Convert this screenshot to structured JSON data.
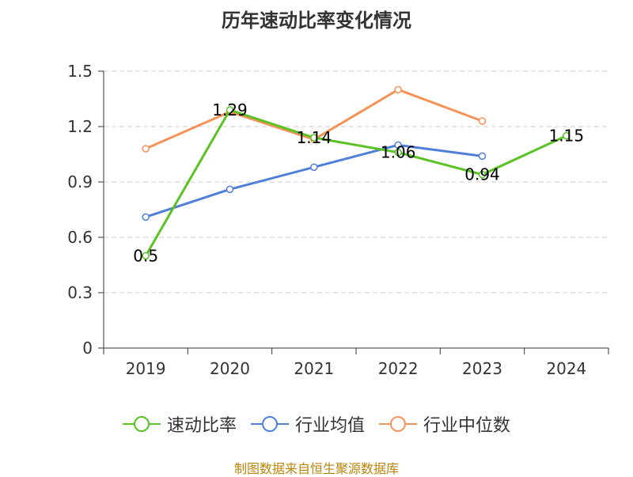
{
  "title": "历年速动比率变化情况",
  "source": "制图数据来自恒生聚源数据库",
  "chart_data": {
    "type": "line",
    "title": "历年速动比率变化情况",
    "categories": [
      "2019",
      "2020",
      "2021",
      "2022",
      "2023",
      "2024"
    ],
    "ylim": [
      0,
      1.5
    ],
    "yticks": [
      "0",
      "0.3",
      "0.6",
      "0.9",
      "1.2",
      "1.5"
    ],
    "grid": true,
    "legend_position": "bottom",
    "series": [
      {
        "name": "速动比率",
        "color": "#5bc226",
        "values": [
          0.5,
          1.29,
          1.14,
          1.06,
          0.94,
          1.15
        ],
        "labels": [
          "0.5",
          "1.29",
          "1.14",
          "1.06",
          "0.94",
          "1.15"
        ]
      },
      {
        "name": "行业均值",
        "color": "#4f7fd8",
        "values": [
          0.71,
          0.86,
          0.98,
          1.1,
          1.04,
          null
        ]
      },
      {
        "name": "行业中位数",
        "color": "#f59258",
        "values": [
          1.08,
          1.28,
          1.13,
          1.4,
          1.23,
          null
        ]
      }
    ]
  }
}
